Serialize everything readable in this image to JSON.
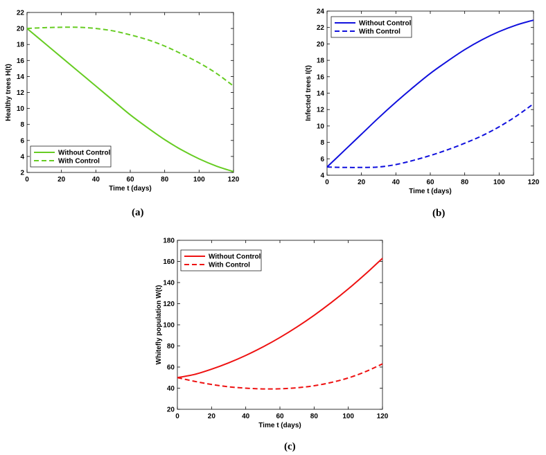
{
  "chart_data": [
    {
      "id": "a",
      "type": "line",
      "panel_label": "(a)",
      "xlabel": "Time t (days)",
      "ylabel": "Healthy trees H(t)",
      "xlim": [
        0,
        120
      ],
      "ylim": [
        2,
        22
      ],
      "xticks": [
        0,
        20,
        40,
        60,
        80,
        100,
        120
      ],
      "yticks": [
        2,
        4,
        6,
        8,
        10,
        12,
        14,
        16,
        18,
        20,
        22
      ],
      "legend_position": "bottom-left",
      "grid": false,
      "series": [
        {
          "name": "Without Control",
          "color": "#66cc22",
          "dash": "solid",
          "x": [
            0,
            10,
            20,
            30,
            40,
            50,
            60,
            70,
            80,
            90,
            100,
            110,
            120
          ],
          "y": [
            20,
            18.2,
            16.4,
            14.6,
            12.8,
            11.0,
            9.2,
            7.6,
            6.1,
            4.8,
            3.7,
            2.8,
            2.1
          ]
        },
        {
          "name": "With Control",
          "color": "#66cc22",
          "dash": "dashed",
          "x": [
            0,
            10,
            20,
            30,
            40,
            50,
            60,
            70,
            80,
            90,
            100,
            110,
            120
          ],
          "y": [
            20,
            20.1,
            20.15,
            20.15,
            20.0,
            19.7,
            19.2,
            18.6,
            17.8,
            16.8,
            15.7,
            14.4,
            12.8
          ]
        }
      ]
    },
    {
      "id": "b",
      "type": "line",
      "panel_label": "(b)",
      "xlabel": "Time t (days)",
      "ylabel": "Infected trees I(t)",
      "xlim": [
        0,
        120
      ],
      "ylim": [
        4,
        24
      ],
      "xticks": [
        0,
        20,
        40,
        60,
        80,
        100,
        120
      ],
      "yticks": [
        4,
        6,
        8,
        10,
        12,
        14,
        16,
        18,
        20,
        22,
        24
      ],
      "legend_position": "top-left",
      "grid": false,
      "series": [
        {
          "name": "Without Control",
          "color": "#1010dd",
          "dash": "solid",
          "x": [
            0,
            10,
            20,
            30,
            40,
            50,
            60,
            70,
            80,
            90,
            100,
            110,
            120
          ],
          "y": [
            5,
            7.0,
            9.0,
            11.0,
            12.9,
            14.7,
            16.4,
            17.9,
            19.3,
            20.5,
            21.5,
            22.3,
            22.9
          ]
        },
        {
          "name": "With Control",
          "color": "#1010dd",
          "dash": "dashed",
          "x": [
            0,
            10,
            20,
            30,
            40,
            50,
            60,
            70,
            80,
            90,
            100,
            110,
            120
          ],
          "y": [
            5,
            4.95,
            4.95,
            5.0,
            5.3,
            5.8,
            6.4,
            7.1,
            7.9,
            8.8,
            9.9,
            11.2,
            12.7
          ]
        }
      ]
    },
    {
      "id": "c",
      "type": "line",
      "panel_label": "(c)",
      "xlabel": "Time t (days)",
      "ylabel": "Whitefly population W(t)",
      "xlim": [
        0,
        120
      ],
      "ylim": [
        20,
        180
      ],
      "xticks": [
        0,
        20,
        40,
        60,
        80,
        100,
        120
      ],
      "yticks": [
        20,
        40,
        60,
        80,
        100,
        120,
        140,
        160,
        180
      ],
      "legend_position": "top-left",
      "grid": false,
      "series": [
        {
          "name": "Without Control",
          "color": "#ee1111",
          "dash": "solid",
          "x": [
            0,
            10,
            20,
            30,
            40,
            50,
            60,
            70,
            80,
            90,
            100,
            110,
            120
          ],
          "y": [
            50,
            53,
            58,
            64,
            71,
            79,
            88,
            98,
            109,
            121,
            134,
            148,
            163
          ]
        },
        {
          "name": "With Control",
          "color": "#ee1111",
          "dash": "dashed",
          "x": [
            0,
            10,
            20,
            30,
            40,
            50,
            60,
            70,
            80,
            90,
            100,
            110,
            120
          ],
          "y": [
            50,
            46.5,
            43.5,
            41.3,
            40.0,
            39.3,
            39.4,
            40.4,
            42.3,
            45.4,
            49.7,
            55.6,
            63
          ]
        }
      ]
    }
  ]
}
